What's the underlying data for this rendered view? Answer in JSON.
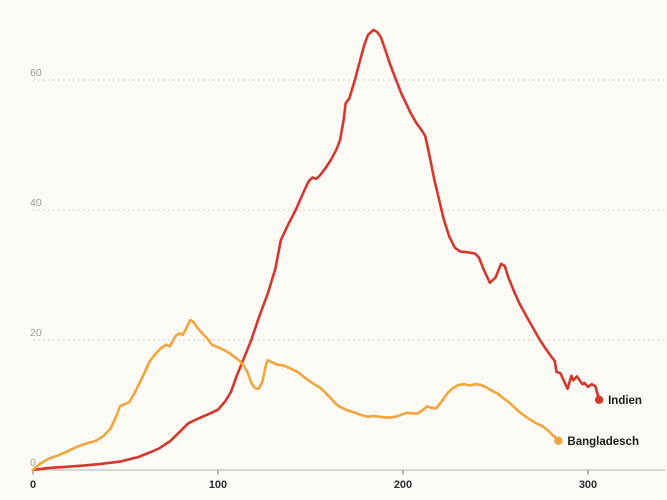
{
  "chart": {
    "background": "#fbfaf5",
    "grid_color": "#c9c9c9",
    "axis_color": "#c2c2c2",
    "tick_color": "#8a8a8a",
    "y_label_color": "#9a9a9a",
    "x_label_color": "#2e2e2e",
    "series_label_color": "#1d1d1b"
  },
  "chart_data": {
    "type": "line",
    "title": "",
    "xlabel": "",
    "ylabel": "",
    "x_ticks": [
      0,
      100,
      200,
      300
    ],
    "y_ticks": [
      0,
      20,
      40,
      60
    ],
    "xlim": [
      0,
      340
    ],
    "ylim": [
      0,
      72
    ],
    "grid": "horizontal-dotted",
    "legend_position": "end-of-line-labels",
    "series": [
      {
        "name": "Indien",
        "color": "#d2382e",
        "points": [
          [
            0,
            0
          ],
          [
            8,
            0.3
          ],
          [
            18,
            0.5
          ],
          [
            28,
            0.7
          ],
          [
            36,
            0.9
          ],
          [
            47,
            1.3
          ],
          [
            57,
            2.0
          ],
          [
            64,
            2.8
          ],
          [
            68,
            3.3
          ],
          [
            74,
            4.4
          ],
          [
            79,
            5.8
          ],
          [
            84,
            7.2
          ],
          [
            90,
            8.0
          ],
          [
            95,
            8.6
          ],
          [
            100,
            9.3
          ],
          [
            104,
            10.6
          ],
          [
            107,
            12.0
          ],
          [
            110,
            14.4
          ],
          [
            113,
            16.5
          ],
          [
            116,
            18.6
          ],
          [
            118,
            20.0
          ],
          [
            122,
            23.4
          ],
          [
            127,
            27.2
          ],
          [
            131,
            31.0
          ],
          [
            134,
            35.4
          ],
          [
            138,
            37.8
          ],
          [
            142,
            40.0
          ],
          [
            146,
            42.6
          ],
          [
            149,
            44.4
          ],
          [
            151,
            45.0
          ],
          [
            153,
            44.8
          ],
          [
            155,
            45.3
          ],
          [
            158,
            46.4
          ],
          [
            161,
            47.7
          ],
          [
            164,
            49.3
          ],
          [
            166,
            50.8
          ],
          [
            168,
            54.0
          ],
          [
            169,
            56.4
          ],
          [
            171,
            57.2
          ],
          [
            174,
            60.0
          ],
          [
            177,
            63.2
          ],
          [
            179,
            65.3
          ],
          [
            181,
            66.9
          ],
          [
            184,
            67.7
          ],
          [
            186,
            67.4
          ],
          [
            188,
            66.6
          ],
          [
            190,
            65.0
          ],
          [
            193,
            62.4
          ],
          [
            196,
            60.2
          ],
          [
            197,
            59.5
          ],
          [
            199,
            58.0
          ],
          [
            201,
            56.8
          ],
          [
            204,
            55.0
          ],
          [
            207,
            53.5
          ],
          [
            210,
            52.3
          ],
          [
            212,
            51.4
          ],
          [
            214,
            48.8
          ],
          [
            217,
            44.6
          ],
          [
            220,
            41.0
          ],
          [
            222,
            38.6
          ],
          [
            225,
            35.9
          ],
          [
            228,
            34.2
          ],
          [
            231,
            33.6
          ],
          [
            235,
            33.5
          ],
          [
            239,
            33.3
          ],
          [
            241,
            32.7
          ],
          [
            244,
            30.6
          ],
          [
            247,
            28.8
          ],
          [
            250,
            29.6
          ],
          [
            253,
            31.7
          ],
          [
            255,
            31.4
          ],
          [
            257,
            29.6
          ],
          [
            260,
            27.5
          ],
          [
            263,
            25.6
          ],
          [
            267,
            23.5
          ],
          [
            270,
            22.0
          ],
          [
            274,
            20.0
          ],
          [
            277,
            18.7
          ],
          [
            280,
            17.5
          ],
          [
            282,
            16.8
          ],
          [
            283,
            15.1
          ],
          [
            285,
            14.9
          ],
          [
            288,
            13.1
          ],
          [
            289,
            12.5
          ],
          [
            291,
            14.5
          ],
          [
            292,
            13.8
          ],
          [
            294,
            14.4
          ],
          [
            297,
            13.2
          ],
          [
            298,
            13.4
          ],
          [
            300,
            12.8
          ],
          [
            302,
            13.2
          ],
          [
            304,
            12.9
          ],
          [
            306,
            10.8
          ]
        ]
      },
      {
        "name": "Bangladesch",
        "color": "#f0a63c",
        "points": [
          [
            0,
            0
          ],
          [
            4,
            1.0
          ],
          [
            9,
            1.8
          ],
          [
            14,
            2.3
          ],
          [
            19,
            2.9
          ],
          [
            24,
            3.6
          ],
          [
            29,
            4.1
          ],
          [
            34,
            4.5
          ],
          [
            38,
            5.2
          ],
          [
            42,
            6.4
          ],
          [
            45,
            8.3
          ],
          [
            47,
            9.8
          ],
          [
            50,
            10.2
          ],
          [
            52,
            10.4
          ],
          [
            55,
            11.9
          ],
          [
            58,
            13.6
          ],
          [
            61,
            15.4
          ],
          [
            63,
            16.7
          ],
          [
            66,
            17.8
          ],
          [
            69,
            18.7
          ],
          [
            72,
            19.3
          ],
          [
            74,
            19.0
          ],
          [
            77,
            20.6
          ],
          [
            79,
            21.0
          ],
          [
            81,
            20.8
          ],
          [
            83,
            21.9
          ],
          [
            85,
            23.1
          ],
          [
            87,
            22.7
          ],
          [
            89,
            21.8
          ],
          [
            91,
            21.2
          ],
          [
            94,
            20.3
          ],
          [
            97,
            19.2
          ],
          [
            100,
            18.9
          ],
          [
            103,
            18.5
          ],
          [
            106,
            18.0
          ],
          [
            109,
            17.4
          ],
          [
            112,
            16.7
          ],
          [
            114,
            16.0
          ],
          [
            116,
            15.0
          ],
          [
            118,
            13.4
          ],
          [
            120,
            12.6
          ],
          [
            122,
            12.5
          ],
          [
            124,
            13.6
          ],
          [
            126,
            16.3
          ],
          [
            127,
            16.9
          ],
          [
            129,
            16.6
          ],
          [
            132,
            16.2
          ],
          [
            135,
            16.1
          ],
          [
            137,
            15.9
          ],
          [
            140,
            15.5
          ],
          [
            143,
            15.1
          ],
          [
            146,
            14.4
          ],
          [
            149,
            13.8
          ],
          [
            152,
            13.2
          ],
          [
            155,
            12.7
          ],
          [
            158,
            11.9
          ],
          [
            161,
            11.0
          ],
          [
            164,
            10.1
          ],
          [
            166,
            9.7
          ],
          [
            169,
            9.3
          ],
          [
            172,
            9.0
          ],
          [
            175,
            8.7
          ],
          [
            178,
            8.4
          ],
          [
            181,
            8.2
          ],
          [
            184,
            8.3
          ],
          [
            187,
            8.2
          ],
          [
            190,
            8.1
          ],
          [
            193,
            8.1
          ],
          [
            196,
            8.2
          ],
          [
            199,
            8.5
          ],
          [
            202,
            8.8
          ],
          [
            205,
            8.7
          ],
          [
            208,
            8.7
          ],
          [
            211,
            9.3
          ],
          [
            213,
            9.8
          ],
          [
            215,
            9.6
          ],
          [
            218,
            9.5
          ],
          [
            221,
            10.6
          ],
          [
            224,
            11.8
          ],
          [
            227,
            12.6
          ],
          [
            230,
            13.1
          ],
          [
            233,
            13.2
          ],
          [
            236,
            13.0
          ],
          [
            239,
            13.2
          ],
          [
            242,
            13.1
          ],
          [
            245,
            12.7
          ],
          [
            248,
            12.2
          ],
          [
            251,
            11.8
          ],
          [
            254,
            11.1
          ],
          [
            257,
            10.5
          ],
          [
            260,
            9.7
          ],
          [
            263,
            8.9
          ],
          [
            266,
            8.3
          ],
          [
            269,
            7.7
          ],
          [
            272,
            7.2
          ],
          [
            275,
            6.8
          ],
          [
            277,
            6.4
          ],
          [
            280,
            5.6
          ],
          [
            282,
            5.1
          ],
          [
            284,
            4.5
          ]
        ]
      }
    ]
  }
}
